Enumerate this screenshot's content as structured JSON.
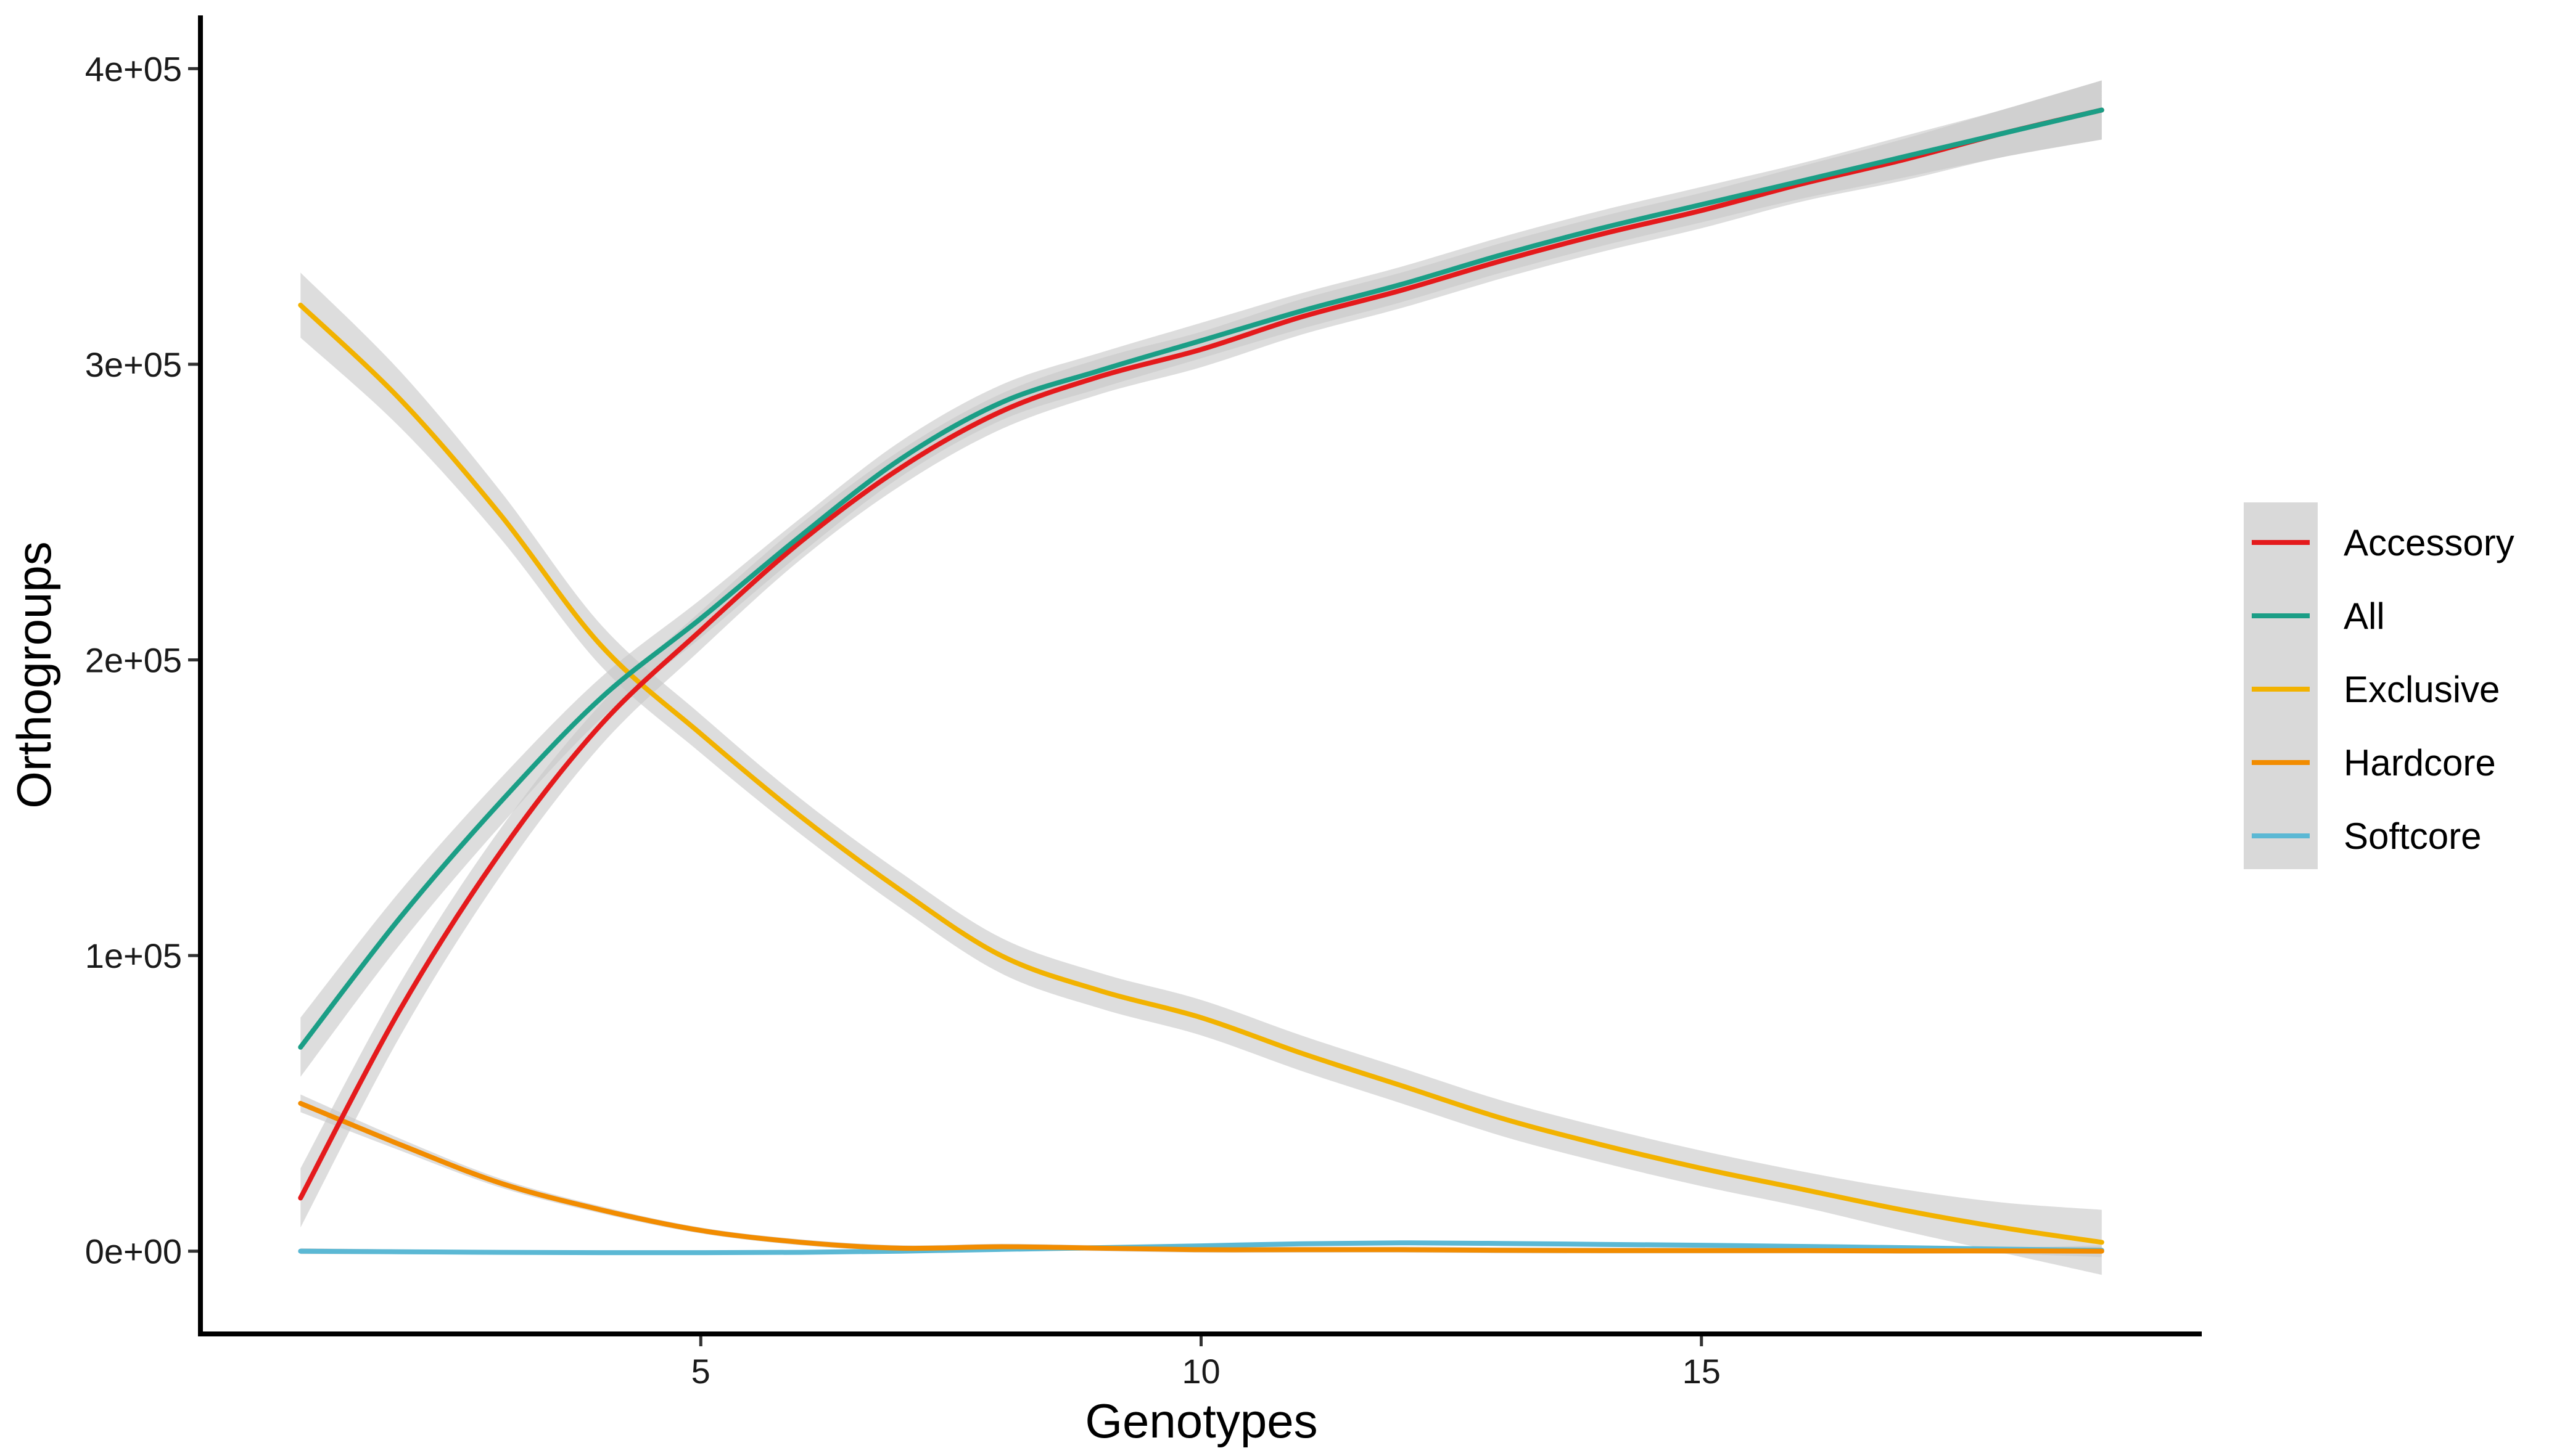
{
  "chart_data": {
    "type": "line",
    "title": "",
    "xlabel": "Genotypes",
    "ylabel": "Orthogroups",
    "xlim": [
      0,
      20
    ],
    "ylim": [
      -28000,
      418000
    ],
    "x_ticks": [
      5,
      10,
      15
    ],
    "x_tick_labels": [
      "5",
      "10",
      "15"
    ],
    "y_ticks": [
      0,
      100000,
      200000,
      300000,
      400000
    ],
    "y_tick_labels": [
      "0e+00",
      "1e+05",
      "2e+05",
      "3e+05",
      "4e+05"
    ],
    "grid": false,
    "legend_position": "right",
    "x": [
      1,
      2,
      3,
      4,
      5,
      6,
      7,
      8,
      9,
      10,
      11,
      12,
      13,
      14,
      15,
      16,
      17,
      18,
      19
    ],
    "series": [
      {
        "name": "Accessory",
        "color": "#E41A1C",
        "values": [
          18000,
          82000,
          135000,
          178000,
          210000,
          240000,
          265000,
          284000,
          296000,
          305000,
          316000,
          325000,
          335000,
          344000,
          352000,
          361000,
          369000,
          378000,
          386000
        ],
        "ci": [
          10000,
          9000,
          8000,
          7000,
          6500,
          6000,
          6000,
          6000,
          6000,
          6000,
          6000,
          6000,
          6000,
          6000,
          6000,
          6000,
          7000,
          8000,
          10000
        ]
      },
      {
        "name": "All",
        "color": "#1B9E86",
        "values": [
          69000,
          113000,
          152000,
          187000,
          214000,
          242000,
          268000,
          287000,
          298000,
          308000,
          318000,
          327000,
          337000,
          346000,
          354000,
          362000,
          370000,
          378000,
          386000
        ],
        "ci": [
          10000,
          9000,
          8000,
          7000,
          6500,
          6000,
          6000,
          6000,
          6000,
          6000,
          6000,
          6000,
          6000,
          6000,
          6000,
          6000,
          7000,
          8000,
          10000
        ]
      },
      {
        "name": "Exclusive",
        "color": "#F2B200",
        "values": [
          320000,
          288000,
          249000,
          205000,
          175000,
          147000,
          122000,
          100000,
          88000,
          79000,
          67000,
          56000,
          45000,
          36000,
          28000,
          21000,
          14000,
          8000,
          3000
        ],
        "ci": [
          11000,
          9500,
          8000,
          7000,
          6500,
          6000,
          6000,
          6000,
          6000,
          6000,
          6000,
          6000,
          6000,
          6000,
          6000,
          6000,
          7000,
          8500,
          11000
        ]
      },
      {
        "name": "Hardcore",
        "color": "#F28C00",
        "values": [
          50000,
          36000,
          23000,
          14000,
          7000,
          3000,
          1000,
          1500,
          1000,
          500,
          500,
          500,
          300,
          200,
          200,
          200,
          100,
          100,
          0
        ],
        "ci": [
          3000,
          2000,
          1500,
          1200,
          1000,
          1000,
          1000,
          1000,
          1000,
          1000,
          1000,
          1000,
          1000,
          1000,
          1000,
          1000,
          1000,
          1000,
          2000
        ]
      },
      {
        "name": "Softcore",
        "color": "#5BB8D4",
        "values": [
          0,
          -200,
          -400,
          -500,
          -500,
          -400,
          0,
          600,
          1200,
          1800,
          2500,
          2800,
          2600,
          2300,
          2000,
          1600,
          1200,
          700,
          300
        ],
        "ci": [
          1000,
          800,
          700,
          600,
          600,
          600,
          600,
          600,
          600,
          600,
          600,
          600,
          600,
          600,
          600,
          600,
          700,
          800,
          1000
        ]
      }
    ]
  }
}
